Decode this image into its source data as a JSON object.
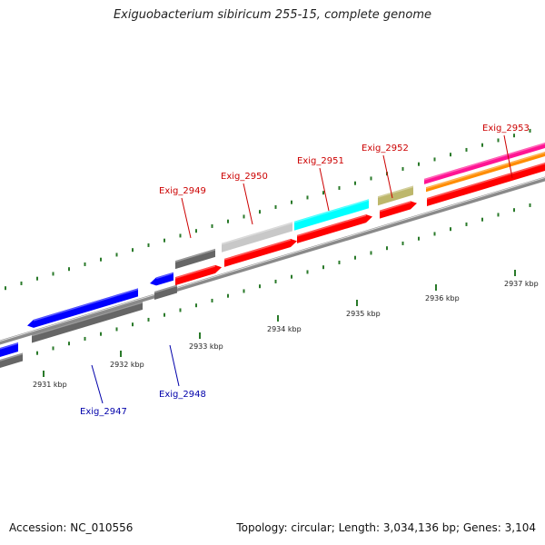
{
  "title": "Exiguobacterium sibiricum 255-15, complete genome",
  "footer": {
    "accession": "Accession: NC_010556",
    "summary": "Topology: circular; Length: 3,034,136 bp; Genes: 3,104"
  },
  "colors": {
    "backbone": "#8a8a8a",
    "tick": "#2a7a2a",
    "red_label": "#cc0000",
    "blue_label": "#0000aa",
    "red_gene": "#ff0000",
    "blue_gene": "#0000ff",
    "gray_gene": "#666666",
    "light_gray_gene": "#c8c8c8",
    "cyan_gene": "#00ffff",
    "khaki_gene": "#bdb76b",
    "magenta_gene": "#ff1493",
    "orange_gene": "#ff8c00"
  },
  "scale_labels": [
    "2931 kbp",
    "2932 kbp",
    "2933 kbp",
    "2934 kbp",
    "2935 kbp",
    "2936 kbp",
    "2937 kbp"
  ],
  "gene_labels": [
    "Exig_2947",
    "Exig_2948",
    "Exig_2949",
    "Exig_2950",
    "Exig_2951",
    "Exig_2952",
    "Exig_2953"
  ]
}
